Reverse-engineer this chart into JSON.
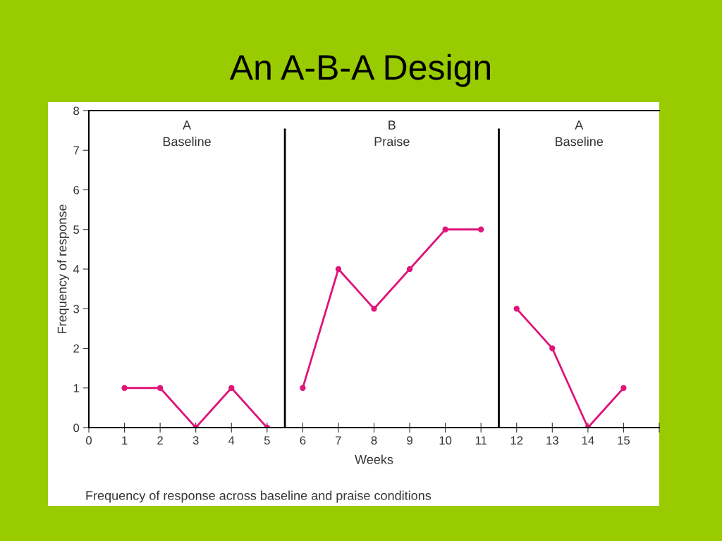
{
  "chart_data": {
    "type": "line",
    "title": "An A-B-A Design",
    "xlabel": "Weeks",
    "ylabel": "Frequency of response",
    "series": [
      {
        "color": "#e0147a",
        "x": [
          1,
          2,
          3,
          4,
          5
        ],
        "values": [
          1,
          1,
          0,
          1,
          0
        ]
      },
      {
        "color": "#e0147a",
        "x": [
          6,
          7,
          8,
          9,
          10,
          11
        ],
        "values": [
          1,
          4,
          3,
          4,
          5,
          5
        ]
      },
      {
        "color": "#e0147a",
        "x": [
          12,
          13,
          14,
          15
        ],
        "values": [
          3,
          2,
          0,
          1
        ]
      }
    ],
    "xlim": [
      0,
      16
    ],
    "xticks": [
      0,
      1,
      2,
      3,
      4,
      5,
      6,
      7,
      8,
      9,
      10,
      11,
      12,
      13,
      14,
      15,
      {
        "value": 16,
        "label": null
      }
    ],
    "ylim": [
      0,
      8
    ],
    "yticks": [
      0,
      1,
      2,
      3,
      4,
      5,
      6,
      7,
      8
    ],
    "ref_lines": [
      {
        "axis": "x",
        "value": 5.5,
        "color": "#000000"
      },
      {
        "axis": "x",
        "value": 11.5,
        "color": "#000000"
      }
    ],
    "annotations": [
      "A\nBaseline",
      "B\nPraise",
      "A\nBaseline",
      "Frequency of response across baseline and praise conditions"
    ],
    "marker": "circle",
    "line_style": "solid",
    "grid": false,
    "legend": false
  }
}
